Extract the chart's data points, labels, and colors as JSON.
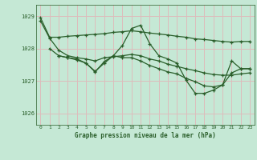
{
  "title": "Graphe pression niveau de la mer (hPa)",
  "background_color": "#c5e8d5",
  "grid_color": "#ddbcbc",
  "line_color": "#2a5e2a",
  "ylim": [
    1025.65,
    1029.35
  ],
  "xlim": [
    -0.5,
    23.5
  ],
  "yticks": [
    1026,
    1027,
    1028,
    1029
  ],
  "xticks": [
    0,
    1,
    2,
    3,
    4,
    5,
    6,
    7,
    8,
    9,
    10,
    11,
    12,
    13,
    14,
    15,
    16,
    17,
    18,
    19,
    20,
    21,
    22,
    23
  ],
  "lines": [
    {
      "x": [
        0,
        1,
        2,
        3,
        4,
        5,
        6,
        7,
        8,
        9,
        10,
        11,
        12,
        13,
        14,
        15,
        16,
        17,
        18,
        19,
        20,
        21,
        22,
        23
      ],
      "y": [
        1028.95,
        1028.35,
        1028.35,
        1028.38,
        1028.4,
        1028.42,
        1028.44,
        1028.46,
        1028.5,
        1028.52,
        1028.55,
        1028.52,
        1028.48,
        1028.45,
        1028.42,
        1028.38,
        1028.35,
        1028.3,
        1028.28,
        1028.25,
        1028.22,
        1028.2,
        1028.22,
        1028.22
      ]
    },
    {
      "x": [
        1,
        2,
        3,
        4,
        5,
        6,
        7,
        8,
        9,
        10,
        11,
        12,
        13,
        14,
        15,
        16,
        17,
        18,
        19,
        20,
        21,
        22,
        23
      ],
      "y": [
        1028.0,
        1027.78,
        1027.72,
        1027.68,
        1027.55,
        1027.3,
        1027.55,
        1027.78,
        1028.1,
        1028.62,
        1028.72,
        1028.15,
        1027.78,
        1027.68,
        1027.55,
        1027.02,
        1026.62,
        1026.62,
        1026.72,
        1026.88,
        1027.62,
        1027.38,
        1027.38
      ]
    },
    {
      "x": [
        2,
        3,
        4,
        5,
        6,
        7,
        8,
        9,
        10,
        11,
        12,
        13,
        14,
        15,
        16,
        17,
        18,
        19,
        20,
        21,
        22,
        23
      ],
      "y": [
        1027.78,
        1027.72,
        1027.65,
        1027.55,
        1027.28,
        1027.6,
        1027.78,
        1027.72,
        1027.72,
        1027.62,
        1027.48,
        1027.38,
        1027.28,
        1027.22,
        1027.08,
        1026.98,
        1026.85,
        1026.82,
        1026.88,
        1027.25,
        1027.38,
        1027.38
      ]
    },
    {
      "x": [
        0,
        1,
        2,
        3,
        4,
        5,
        6,
        7,
        8,
        9,
        10,
        11,
        12,
        13,
        14,
        15,
        16,
        17,
        18,
        19,
        20,
        21,
        22,
        23
      ],
      "y": [
        1028.85,
        1028.32,
        1027.95,
        1027.78,
        1027.72,
        1027.68,
        1027.62,
        1027.72,
        1027.75,
        1027.78,
        1027.82,
        1027.78,
        1027.68,
        1027.62,
        1027.52,
        1027.45,
        1027.38,
        1027.32,
        1027.25,
        1027.2,
        1027.18,
        1027.18,
        1027.22,
        1027.25
      ]
    }
  ]
}
